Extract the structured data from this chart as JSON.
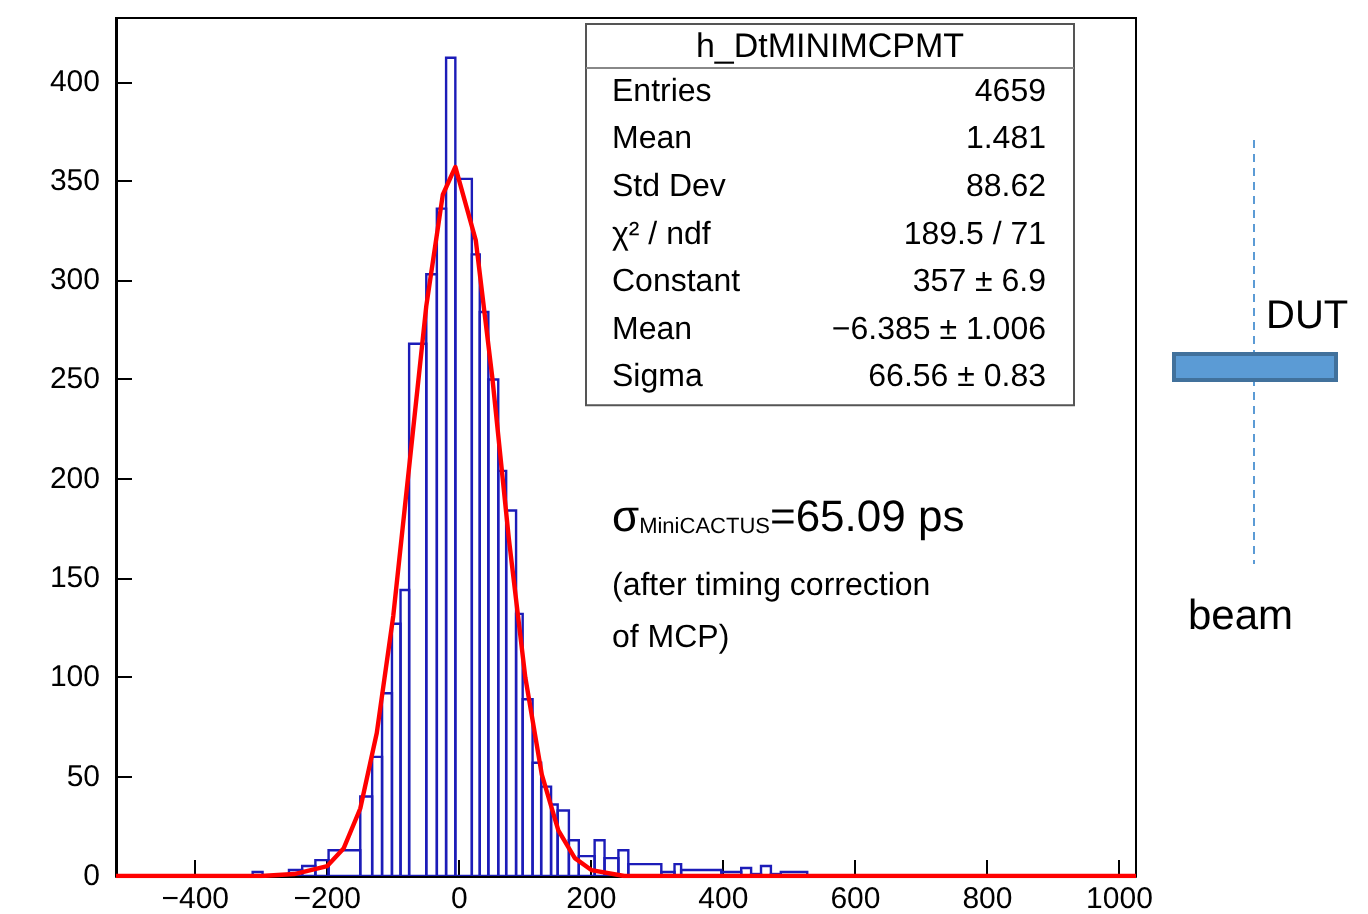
{
  "chart_data": {
    "type": "histogram",
    "xlim": [
      -520,
      1025
    ],
    "xticks": [
      -400,
      -200,
      0,
      200,
      400,
      600,
      800,
      1000
    ],
    "ylim": [
      0,
      432
    ],
    "yticks": [
      0,
      50,
      100,
      150,
      200,
      250,
      300,
      350,
      400
    ],
    "grid": false,
    "series": [
      {
        "color": "#1c1cb8",
        "bins": [
          -313,
          -298,
          -258,
          -238,
          -218,
          -198,
          -150,
          -132,
          -117,
          -102,
          -89,
          -76,
          -50,
          -34,
          -20,
          -6,
          19,
          31,
          44,
          59,
          71,
          86,
          96,
          111,
          124,
          139,
          149,
          166,
          181,
          205,
          220,
          241,
          256,
          306,
          326,
          336,
          397,
          427,
          442,
          457,
          472,
          487,
          527
        ],
        "values": [
          2,
          0,
          3,
          5,
          8,
          13,
          40,
          60,
          92,
          127,
          144,
          268,
          303,
          336,
          412,
          351,
          313,
          284,
          250,
          204,
          184,
          132,
          89,
          57,
          45,
          36,
          33,
          18,
          10,
          18,
          9,
          13,
          6,
          2,
          6,
          3,
          2,
          4,
          1,
          5,
          1,
          2
        ]
      },
      {
        "type": "line",
        "color": "#ff0000",
        "marker": "none",
        "x": [
          -520,
          -300,
          -250,
          -200,
          -175,
          -150,
          -125,
          -100,
          -75,
          -50,
          -25,
          -6,
          25,
          50,
          75,
          100,
          125,
          150,
          175,
          200,
          250,
          300,
          1025
        ],
        "values": [
          0,
          0,
          1,
          5,
          14,
          34,
          72,
          131,
          209,
          287,
          343,
          357,
          320,
          251,
          170,
          100,
          51,
          23,
          9,
          3,
          0,
          0,
          0
        ]
      }
    ],
    "annotations": [
      "h_DtMINIMCPMT",
      "Entries  4659",
      "Mean  1.481",
      "Std Dev  88.62",
      "χ² / ndf  189.5 / 71",
      "Constant  357 ± 6.9",
      "Mean  −6.385 ± 1.006",
      "Sigma  66.56 ± 0.83",
      "σ$_{MiniCACTUS}$=65.09 ps",
      "(after timing correction",
      "of MCP)",
      "DUT",
      "beam"
    ]
  }
}
